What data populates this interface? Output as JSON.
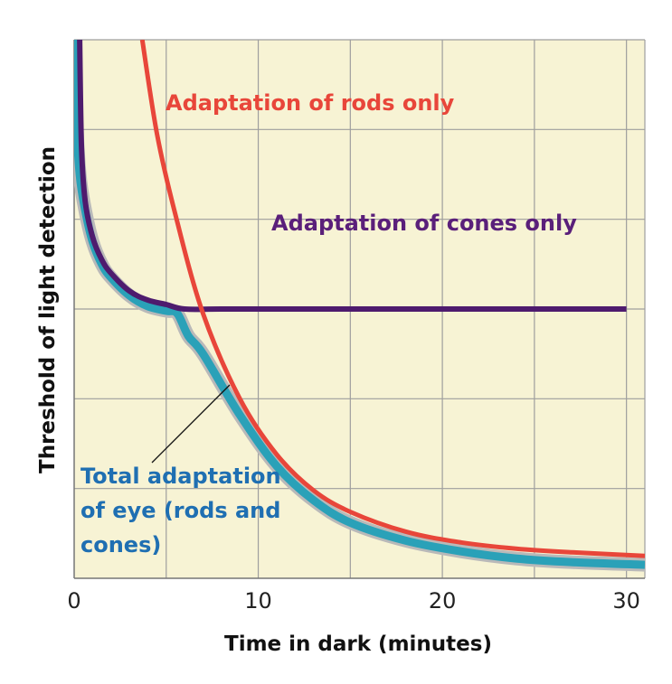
{
  "chart_data": {
    "type": "line",
    "title": "",
    "xlabel": "Time in dark (minutes)",
    "ylabel": "Threshold of light detection",
    "xlim": [
      0,
      31
    ],
    "ylim": [
      0,
      6
    ],
    "x_ticks": [
      0,
      10,
      20,
      30
    ],
    "x_tick_labels": [
      "0",
      "10",
      "20",
      "30"
    ],
    "grid": true,
    "series": [
      {
        "name": "Adaptation of rods only",
        "color": "#e8463a",
        "x": [
          3.7,
          4.5,
          5.5,
          7,
          9,
          11,
          13,
          15,
          18,
          21,
          24,
          27,
          31
        ],
        "y": [
          6.0,
          4.95,
          4.05,
          2.95,
          2.0,
          1.38,
          0.98,
          0.74,
          0.52,
          0.4,
          0.33,
          0.29,
          0.25
        ]
      },
      {
        "name": "Adaptation of cones only",
        "color": "#4e1b6e",
        "x": [
          0.3,
          0.4,
          0.6,
          1,
          1.5,
          2,
          3,
          4,
          5,
          6,
          8,
          12,
          20,
          30
        ],
        "y": [
          6.0,
          4.8,
          4.2,
          3.8,
          3.55,
          3.4,
          3.2,
          3.1,
          3.05,
          3.0,
          3.0,
          3.0,
          3.0,
          3.0
        ]
      },
      {
        "name": "Total adaptation of eye (rods and cones)",
        "color": "#2aa1b8",
        "x": [
          0,
          0.1,
          0.3,
          0.6,
          1,
          1.5,
          2,
          3,
          4,
          5,
          5.6,
          6.2,
          7,
          9,
          11,
          13,
          15,
          18,
          21,
          24,
          27,
          31
        ],
        "y": [
          6.0,
          5.2,
          4.5,
          4.1,
          3.75,
          3.5,
          3.35,
          3.15,
          3.03,
          2.98,
          2.95,
          2.7,
          2.5,
          1.82,
          1.25,
          0.87,
          0.62,
          0.42,
          0.3,
          0.22,
          0.18,
          0.15
        ]
      }
    ],
    "annotations": [
      {
        "text": "Adaptation of rods only",
        "color": "#e8463a"
      },
      {
        "text": "Adaptation of cones only",
        "color": "#5a1f7a"
      },
      {
        "text_lines": [
          "Total adaptation",
          "of eye (rods and",
          "cones)"
        ],
        "color": "#1f6fb2"
      }
    ],
    "colors": {
      "plot_background": "#f7f3d4",
      "grid": "#9e9e9e"
    }
  }
}
